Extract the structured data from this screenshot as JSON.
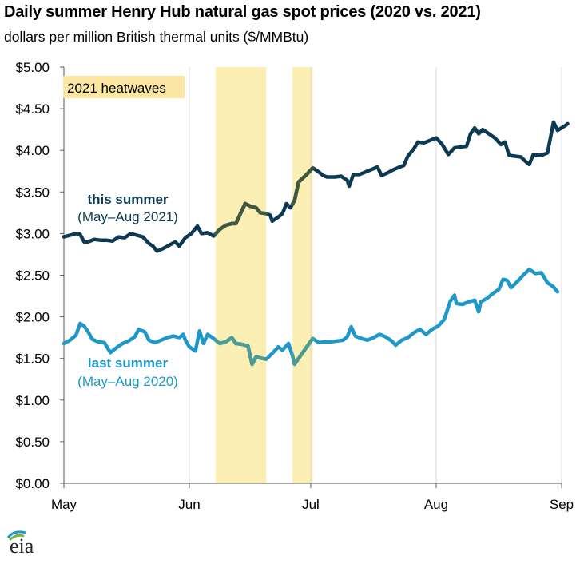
{
  "title": "Daily summer Henry Hub natural gas spot prices (2020 vs. 2021)",
  "subtitle": "dollars per million British thermal units ($/MMBtu)",
  "logo": "eia",
  "chart_data": {
    "type": "line",
    "x_unit": "day of summer (0 = May 1)",
    "xlim": [
      0,
      123
    ],
    "x_ticks": [
      {
        "label": "May",
        "day": 0
      },
      {
        "label": "Jun",
        "day": 31
      },
      {
        "label": "Jul",
        "day": 61
      },
      {
        "label": "Aug",
        "day": 92
      },
      {
        "label": "Sep",
        "day": 123
      }
    ],
    "ylim": [
      0,
      5
    ],
    "y_ticks": [
      {
        "label": "$0.00",
        "value": 0
      },
      {
        "label": "$0.50",
        "value": 0.5
      },
      {
        "label": "$1.00",
        "value": 1.0
      },
      {
        "label": "$1.50",
        "value": 1.5
      },
      {
        "label": "$2.00",
        "value": 2.0
      },
      {
        "label": "$2.50",
        "value": 2.5
      },
      {
        "label": "$3.00",
        "value": 3.0
      },
      {
        "label": "$3.50",
        "value": 3.5
      },
      {
        "label": "$4.00",
        "value": 4.0
      },
      {
        "label": "$4.50",
        "value": 4.5
      },
      {
        "label": "$5.00",
        "value": 5.0
      }
    ],
    "grid": "vertical lines at month boundaries",
    "heatwaves": {
      "label": "2021 heatwaves",
      "fill": "#fcefb4",
      "label_fill": "#fbe6a3",
      "bands": [
        [
          37.5,
          50
        ],
        [
          56.5,
          61.5
        ]
      ]
    },
    "series": [
      {
        "name": "this summer",
        "sub": "(May–Aug 2021)",
        "color": "#0d3a53",
        "heat_color": "#3f5940",
        "points": [
          [
            0,
            2.96
          ],
          [
            1.5,
            2.98
          ],
          [
            3,
            3.0
          ],
          [
            4,
            2.99
          ],
          [
            5,
            2.9
          ],
          [
            6,
            2.9
          ],
          [
            7.5,
            2.93
          ],
          [
            9,
            2.92
          ],
          [
            10.5,
            2.92
          ],
          [
            12,
            2.91
          ],
          [
            13.5,
            2.96
          ],
          [
            15,
            2.95
          ],
          [
            16.5,
            3.0
          ],
          [
            18,
            2.98
          ],
          [
            19.5,
            2.96
          ],
          [
            21,
            2.88
          ],
          [
            22,
            2.85
          ],
          [
            23,
            2.79
          ],
          [
            24.5,
            2.82
          ],
          [
            26,
            2.86
          ],
          [
            27.5,
            2.9
          ],
          [
            28.5,
            2.85
          ],
          [
            30,
            2.95
          ],
          [
            31.5,
            3.0
          ],
          [
            33,
            3.09
          ],
          [
            34,
            3.0
          ],
          [
            35.5,
            3.01
          ],
          [
            37,
            2.97
          ],
          [
            38.5,
            3.05
          ],
          [
            40,
            3.1
          ],
          [
            41.5,
            3.12
          ],
          [
            42.5,
            3.12
          ],
          [
            44,
            3.28
          ],
          [
            44.8,
            3.36
          ],
          [
            46,
            3.33
          ],
          [
            47.5,
            3.31
          ],
          [
            48.5,
            3.25
          ],
          [
            50,
            3.24
          ],
          [
            51,
            3.22
          ],
          [
            51.5,
            3.15
          ],
          [
            53,
            3.2
          ],
          [
            54,
            3.24
          ],
          [
            55,
            3.36
          ],
          [
            56,
            3.31
          ],
          [
            57,
            3.4
          ],
          [
            58,
            3.62
          ],
          [
            60,
            3.71
          ],
          [
            61.5,
            3.79
          ],
          [
            63,
            3.74
          ],
          [
            64,
            3.7
          ],
          [
            65,
            3.68
          ],
          [
            67,
            3.68
          ],
          [
            68.5,
            3.69
          ],
          [
            70,
            3.64
          ],
          [
            70.5,
            3.57
          ],
          [
            71.5,
            3.71
          ],
          [
            73,
            3.71
          ],
          [
            74.5,
            3.74
          ],
          [
            76,
            3.77
          ],
          [
            77.5,
            3.8
          ],
          [
            78.5,
            3.7
          ],
          [
            80,
            3.73
          ],
          [
            81.5,
            3.77
          ],
          [
            82.5,
            3.79
          ],
          [
            84,
            3.82
          ],
          [
            85,
            3.93
          ],
          [
            86.5,
            4.02
          ],
          [
            87.5,
            4.1
          ],
          [
            89,
            4.09
          ],
          [
            90.5,
            4.12
          ],
          [
            92,
            4.15
          ],
          [
            93.5,
            4.07
          ],
          [
            95,
            3.95
          ],
          [
            96.5,
            4.03
          ],
          [
            98,
            4.04
          ],
          [
            99.5,
            4.05
          ],
          [
            100.5,
            4.2
          ],
          [
            101.5,
            4.27
          ],
          [
            102.5,
            4.2
          ],
          [
            103.5,
            4.25
          ],
          [
            105,
            4.2
          ],
          [
            106.5,
            4.15
          ],
          [
            108,
            4.07
          ],
          [
            109,
            4.1
          ],
          [
            110,
            3.94
          ],
          [
            111.5,
            3.93
          ],
          [
            113,
            3.92
          ],
          [
            114,
            3.87
          ],
          [
            115,
            3.83
          ],
          [
            116,
            3.95
          ],
          [
            117.5,
            3.94
          ],
          [
            118.5,
            3.95
          ],
          [
            119.5,
            3.97
          ],
          [
            121,
            4.34
          ],
          [
            122,
            4.24
          ],
          [
            123,
            4.27
          ],
          [
            124,
            4.3
          ],
          [
            124.5,
            4.32
          ]
        ]
      },
      {
        "name": "last summer",
        "sub": "(May–Aug 2020)",
        "color": "#1f98c9",
        "heat_color": "#4a9c94",
        "points": [
          [
            0,
            1.68
          ],
          [
            1.5,
            1.72
          ],
          [
            3,
            1.78
          ],
          [
            4,
            1.92
          ],
          [
            5,
            1.89
          ],
          [
            6,
            1.82
          ],
          [
            7,
            1.73
          ],
          [
            8.5,
            1.7
          ],
          [
            10,
            1.69
          ],
          [
            11.5,
            1.57
          ],
          [
            13,
            1.63
          ],
          [
            14.5,
            1.68
          ],
          [
            16,
            1.71
          ],
          [
            17.5,
            1.76
          ],
          [
            18.5,
            1.85
          ],
          [
            20,
            1.82
          ],
          [
            21,
            1.72
          ],
          [
            22.5,
            1.69
          ],
          [
            24,
            1.72
          ],
          [
            25.5,
            1.75
          ],
          [
            27,
            1.77
          ],
          [
            28.5,
            1.75
          ],
          [
            29.5,
            1.79
          ],
          [
            30,
            1.72
          ],
          [
            31,
            1.64
          ],
          [
            32.5,
            1.59
          ],
          [
            33.5,
            1.83
          ],
          [
            34.5,
            1.68
          ],
          [
            35.5,
            1.79
          ],
          [
            37,
            1.74
          ],
          [
            38.5,
            1.68
          ],
          [
            40,
            1.7
          ],
          [
            41.5,
            1.75
          ],
          [
            42.5,
            1.68
          ],
          [
            44,
            1.67
          ],
          [
            45.5,
            1.65
          ],
          [
            46.5,
            1.43
          ],
          [
            47.5,
            1.52
          ],
          [
            49,
            1.5
          ],
          [
            50,
            1.49
          ],
          [
            51.5,
            1.56
          ],
          [
            53,
            1.64
          ],
          [
            54,
            1.6
          ],
          [
            55.5,
            1.68
          ],
          [
            56.5,
            1.53
          ],
          [
            57,
            1.43
          ],
          [
            59,
            1.57
          ],
          [
            61.5,
            1.74
          ],
          [
            63,
            1.69
          ],
          [
            64.5,
            1.7
          ],
          [
            66,
            1.7
          ],
          [
            67.5,
            1.71
          ],
          [
            69,
            1.72
          ],
          [
            70,
            1.76
          ],
          [
            71,
            1.88
          ],
          [
            72,
            1.77
          ],
          [
            73.5,
            1.74
          ],
          [
            75,
            1.72
          ],
          [
            76.5,
            1.75
          ],
          [
            78,
            1.79
          ],
          [
            79.5,
            1.76
          ],
          [
            81,
            1.71
          ],
          [
            82,
            1.66
          ],
          [
            83.5,
            1.72
          ],
          [
            85,
            1.75
          ],
          [
            86.5,
            1.81
          ],
          [
            88,
            1.85
          ],
          [
            89.5,
            1.79
          ],
          [
            91,
            1.85
          ],
          [
            92.5,
            1.89
          ],
          [
            94,
            1.97
          ],
          [
            95.5,
            2.19
          ],
          [
            96.5,
            2.26
          ],
          [
            97,
            2.16
          ],
          [
            98.5,
            2.15
          ],
          [
            100,
            2.18
          ],
          [
            101.5,
            2.2
          ],
          [
            102.5,
            2.06
          ],
          [
            103,
            2.18
          ],
          [
            104.5,
            2.22
          ],
          [
            106,
            2.28
          ],
          [
            107.5,
            2.33
          ],
          [
            108.5,
            2.45
          ],
          [
            109.5,
            2.44
          ],
          [
            110.5,
            2.35
          ],
          [
            112,
            2.42
          ],
          [
            113.5,
            2.5
          ],
          [
            115,
            2.57
          ],
          [
            116.5,
            2.52
          ],
          [
            118,
            2.53
          ],
          [
            119.5,
            2.41
          ],
          [
            121,
            2.36
          ],
          [
            122,
            2.3
          ]
        ]
      }
    ]
  }
}
